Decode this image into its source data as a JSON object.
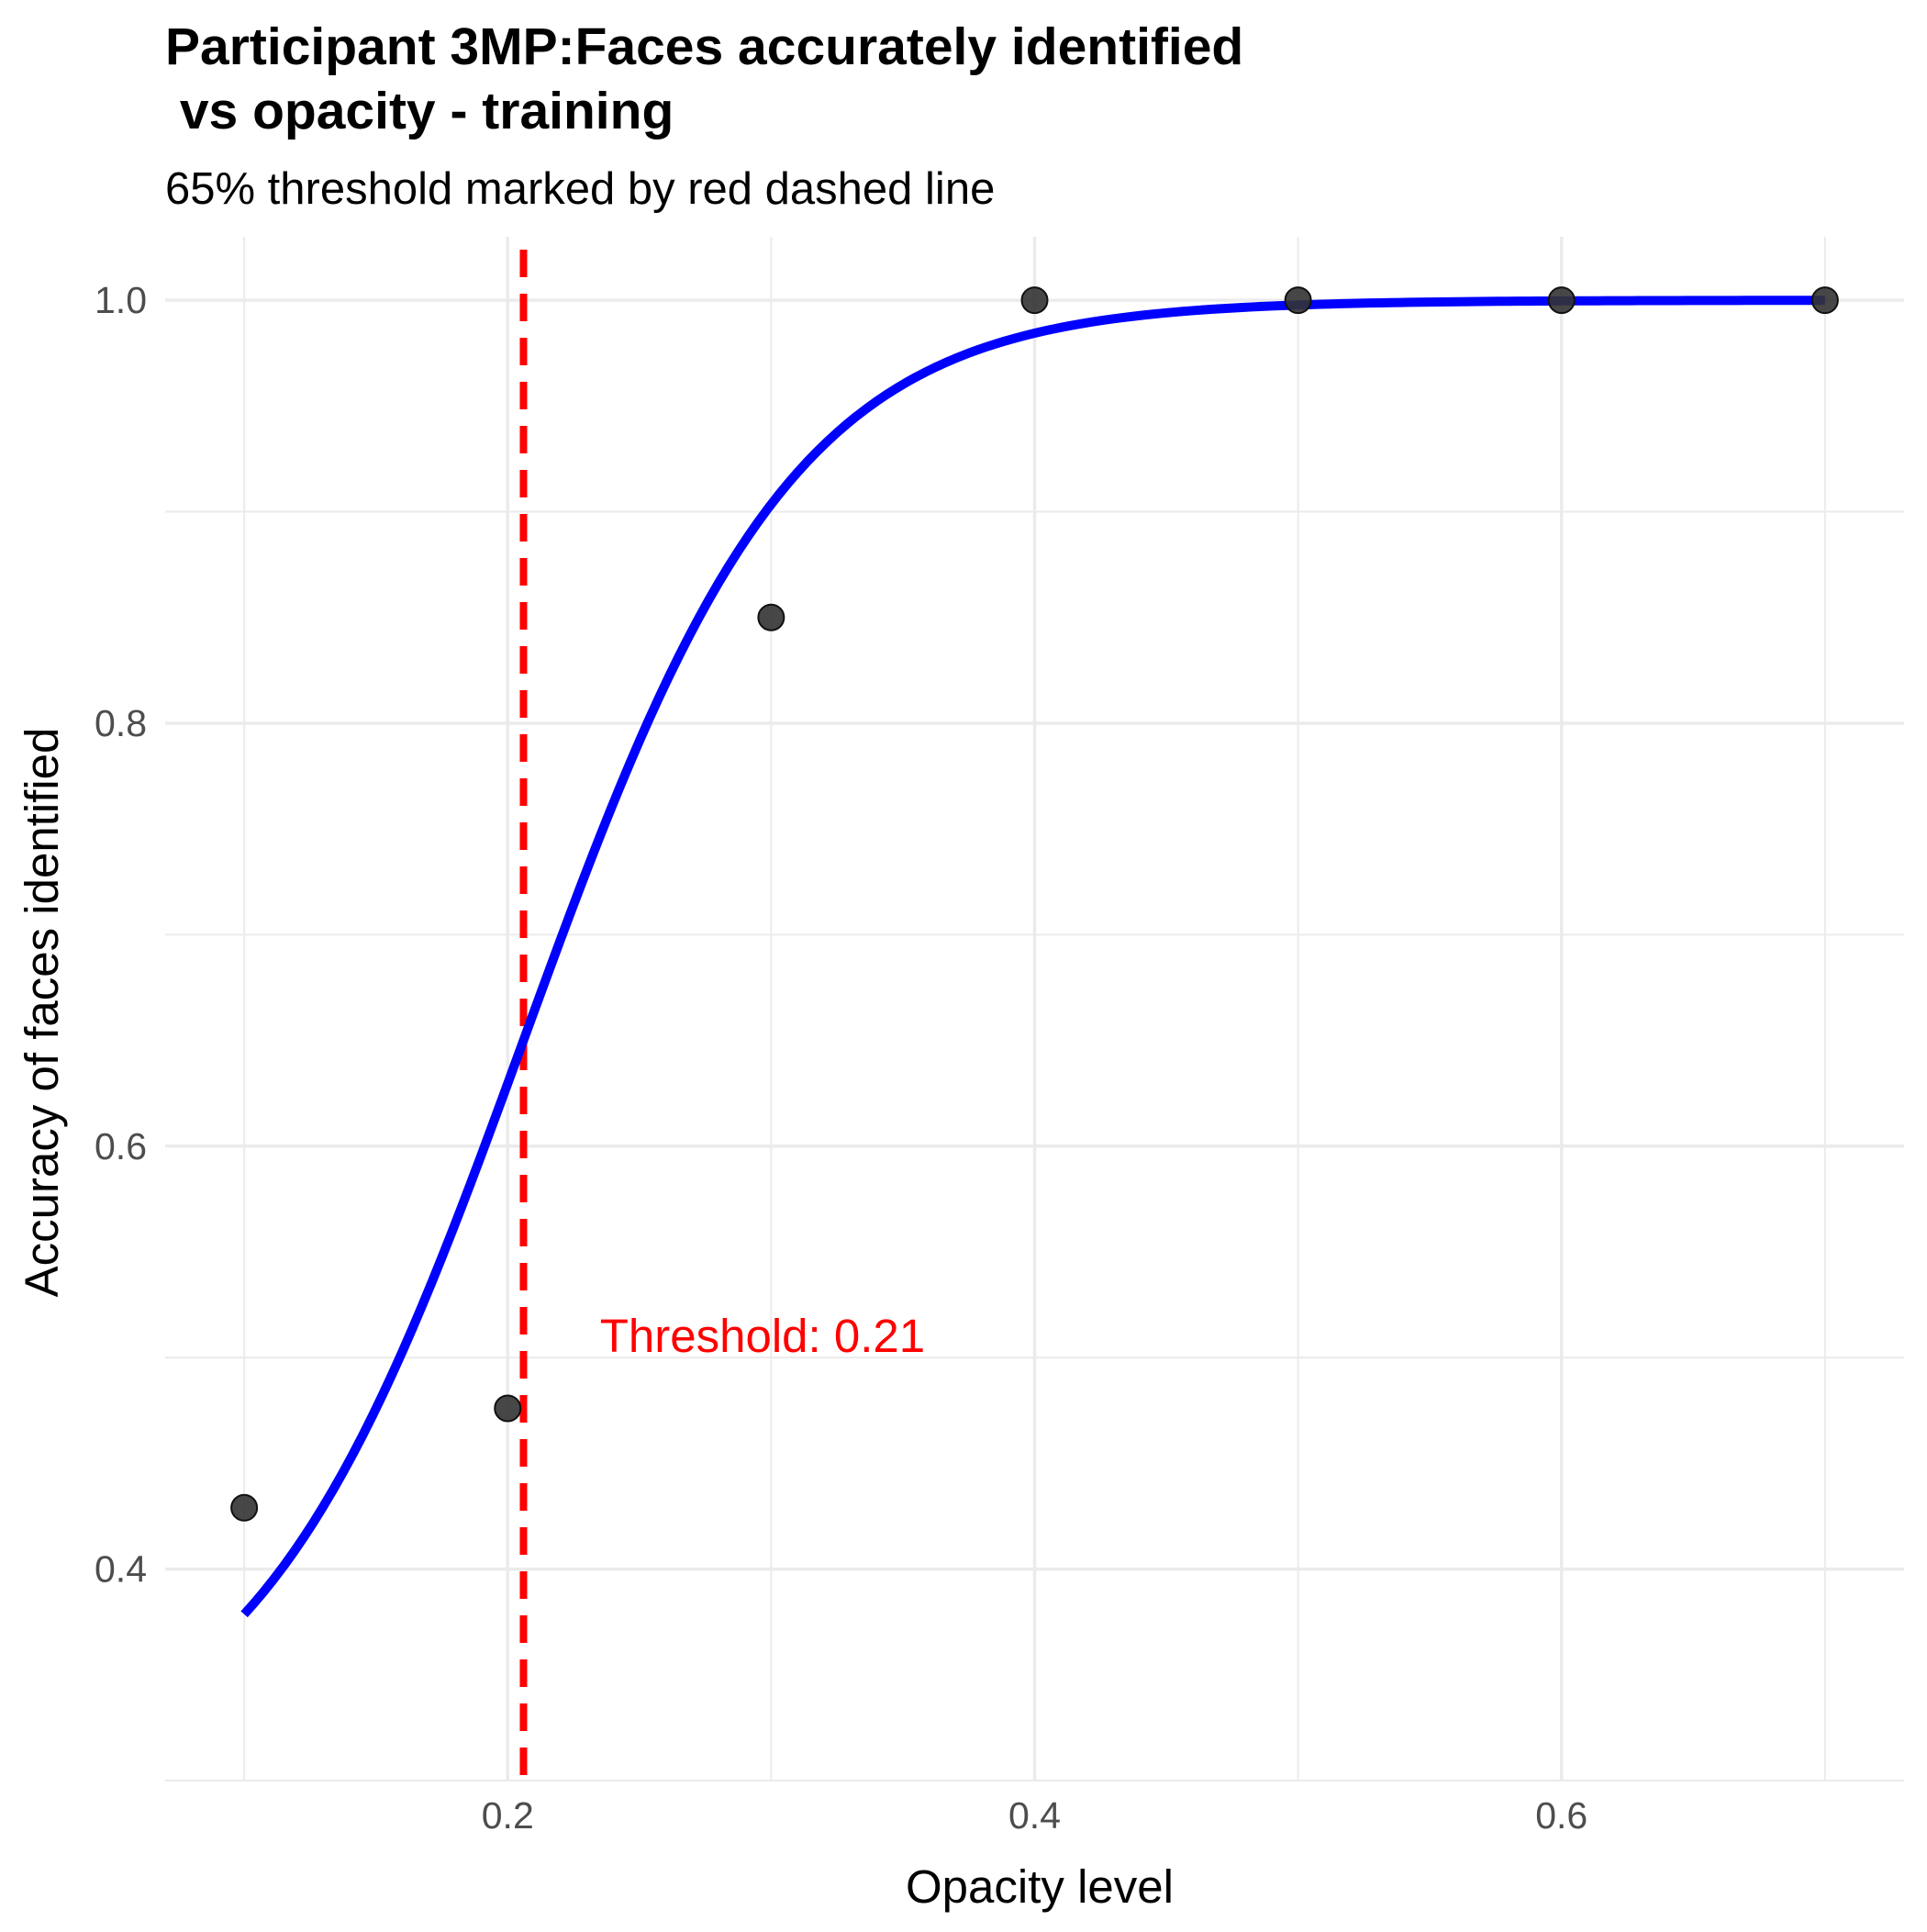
{
  "chart_data": {
    "type": "scatter",
    "title_lines": [
      "Participant 3MP:Faces accurately identified",
      " vs opacity - training"
    ],
    "subtitle": "65% threshold marked by red dashed line",
    "xlabel": "Opacity level",
    "ylabel": "Accuracy of faces identified",
    "xlim": [
      0.07,
      0.73
    ],
    "ylim": [
      0.3,
      1.03
    ],
    "x_ticks": [
      0.2,
      0.4,
      0.6
    ],
    "x_tick_labels": [
      "0.2",
      "0.4",
      "0.6"
    ],
    "x_minor_ticks": [
      0.1,
      0.3,
      0.5,
      0.7
    ],
    "y_ticks": [
      0.4,
      0.6,
      0.8,
      1.0
    ],
    "y_tick_labels": [
      "0.4",
      "0.6",
      "0.8",
      "1.0"
    ],
    "y_minor_ticks": [
      0.3,
      0.5,
      0.7,
      0.9
    ],
    "grid": true,
    "points": {
      "color": "#333333",
      "x": [
        0.1,
        0.2,
        0.3,
        0.4,
        0.5,
        0.6,
        0.7
      ],
      "y": [
        0.429,
        0.476,
        0.85,
        1.0,
        1.0,
        1.0,
        1.0
      ]
    },
    "fit_curve": {
      "color": "#0000ff",
      "x_range": [
        0.1,
        0.7
      ]
    },
    "threshold": {
      "x": 0.206,
      "accuracy_level": 0.65,
      "color": "#ff0000",
      "label": "Threshold: 0.21",
      "label_x": 0.235,
      "label_y": 0.51
    }
  }
}
